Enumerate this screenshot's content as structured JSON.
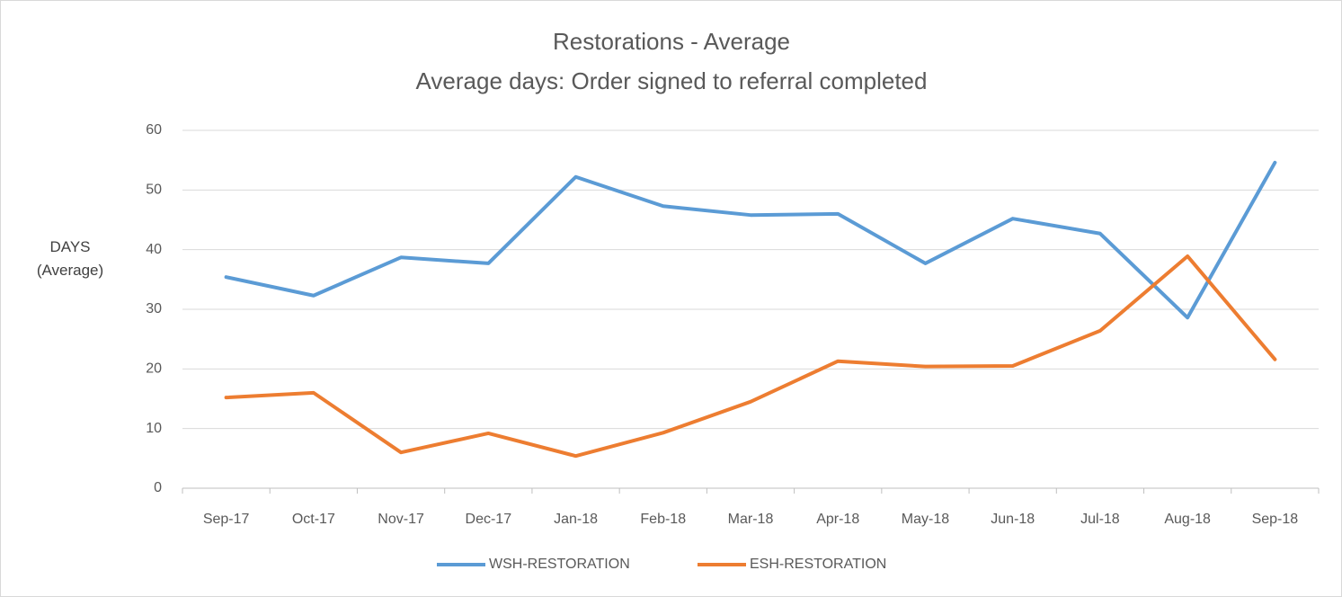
{
  "chart_data": {
    "type": "line",
    "title": "Restorations - Average",
    "subtitle": "Average days: Order signed to referral completed",
    "y_label": "DAYS (Average)",
    "categories": [
      "Sep-17",
      "Oct-17",
      "Nov-17",
      "Dec-17",
      "Jan-18",
      "Feb-18",
      "Mar-18",
      "Apr-18",
      "May-18",
      "Jun-18",
      "Jul-18",
      "Aug-18",
      "Sep-18"
    ],
    "series": [
      {
        "name": "WSH-RESTORATION",
        "color": "#5b9bd5",
        "values": [
          35.4,
          32.3,
          38.7,
          37.7,
          52.2,
          47.3,
          45.8,
          46.0,
          37.7,
          45.2,
          42.7,
          28.6,
          54.6
        ]
      },
      {
        "name": "ESH-RESTORATION",
        "color": "#ed7d31",
        "values": [
          15.2,
          16.0,
          6.0,
          9.2,
          5.4,
          9.3,
          14.5,
          21.3,
          20.4,
          20.5,
          26.4,
          38.9,
          21.6
        ]
      }
    ],
    "ylim": [
      0,
      60
    ],
    "yticks": [
      0,
      10,
      20,
      30,
      40,
      50,
      60
    ],
    "grid": true,
    "legend": "bottom"
  }
}
